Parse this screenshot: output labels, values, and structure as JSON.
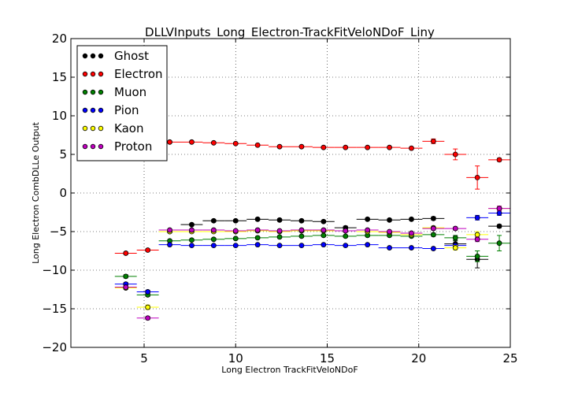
{
  "chart_data": {
    "type": "scatter",
    "title": "DLLVInputs_Long_Electron-TrackFitVeloNDoF_Liny",
    "xlabel": "Long Electron TrackFitVeloNDoF",
    "ylabel": "Long Electron CombDLLe Output",
    "xlim": [
      1,
      25
    ],
    "ylim": [
      -20,
      20
    ],
    "xticks": [
      5,
      10,
      15,
      20,
      25
    ],
    "yticks": [
      -20,
      -15,
      -10,
      -5,
      0,
      5,
      10,
      15,
      20
    ],
    "grid": true,
    "legend_position": "top-left",
    "x_error": 0.6,
    "series": [
      {
        "name": "Ghost",
        "color": "#000000",
        "points": [
          {
            "x": 6.4,
            "y": -5.0,
            "yerr": 0.15
          },
          {
            "x": 7.6,
            "y": -4.1,
            "yerr": 0.15
          },
          {
            "x": 8.8,
            "y": -3.6,
            "yerr": 0.15
          },
          {
            "x": 10.0,
            "y": -3.6,
            "yerr": 0.15
          },
          {
            "x": 11.2,
            "y": -3.4,
            "yerr": 0.15
          },
          {
            "x": 12.4,
            "y": -3.5,
            "yerr": 0.15
          },
          {
            "x": 13.6,
            "y": -3.6,
            "yerr": 0.15
          },
          {
            "x": 14.8,
            "y": -3.7,
            "yerr": 0.15
          },
          {
            "x": 16.0,
            "y": -4.5,
            "yerr": 0.2
          },
          {
            "x": 17.2,
            "y": -3.4,
            "yerr": 0.15
          },
          {
            "x": 18.4,
            "y": -3.5,
            "yerr": 0.15
          },
          {
            "x": 19.6,
            "y": -3.4,
            "yerr": 0.15
          },
          {
            "x": 20.8,
            "y": -3.3,
            "yerr": 0.2
          },
          {
            "x": 22.0,
            "y": -6.6,
            "yerr": 0.4
          },
          {
            "x": 23.2,
            "y": -8.6,
            "yerr": 1.1
          },
          {
            "x": 24.4,
            "y": -4.3,
            "yerr": 0.2
          }
        ]
      },
      {
        "name": "Electron",
        "color": "#ff0000",
        "points": [
          {
            "x": 4.0,
            "y": -7.8,
            "yerr": 0.15
          },
          {
            "x": 5.2,
            "y": -7.4,
            "yerr": 0.15
          },
          {
            "x": 6.4,
            "y": 6.6,
            "yerr": 0.1
          },
          {
            "x": 7.6,
            "y": 6.6,
            "yerr": 0.1
          },
          {
            "x": 8.8,
            "y": 6.5,
            "yerr": 0.1
          },
          {
            "x": 10.0,
            "y": 6.4,
            "yerr": 0.1
          },
          {
            "x": 11.2,
            "y": 6.2,
            "yerr": 0.1
          },
          {
            "x": 12.4,
            "y": 6.0,
            "yerr": 0.1
          },
          {
            "x": 13.6,
            "y": 6.0,
            "yerr": 0.1
          },
          {
            "x": 14.8,
            "y": 5.9,
            "yerr": 0.1
          },
          {
            "x": 16.0,
            "y": 5.9,
            "yerr": 0.1
          },
          {
            "x": 17.2,
            "y": 5.9,
            "yerr": 0.1
          },
          {
            "x": 18.4,
            "y": 5.9,
            "yerr": 0.1
          },
          {
            "x": 19.6,
            "y": 5.8,
            "yerr": 0.15
          },
          {
            "x": 20.8,
            "y": 6.7,
            "yerr": 0.3
          },
          {
            "x": 22.0,
            "y": 5.0,
            "yerr": 0.7
          },
          {
            "x": 23.2,
            "y": 2.0,
            "yerr": 1.5
          },
          {
            "x": 24.4,
            "y": 4.3,
            "yerr": 0.2
          }
        ]
      },
      {
        "name": "Muon",
        "color": "#008000",
        "points": [
          {
            "x": 4.0,
            "y": -10.8,
            "yerr": 0.2
          },
          {
            "x": 5.2,
            "y": -13.2,
            "yerr": 0.2
          },
          {
            "x": 6.4,
            "y": -6.2,
            "yerr": 0.15
          },
          {
            "x": 7.6,
            "y": -6.1,
            "yerr": 0.15
          },
          {
            "x": 8.8,
            "y": -6.0,
            "yerr": 0.15
          },
          {
            "x": 10.0,
            "y": -5.9,
            "yerr": 0.15
          },
          {
            "x": 11.2,
            "y": -5.8,
            "yerr": 0.15
          },
          {
            "x": 12.4,
            "y": -5.7,
            "yerr": 0.15
          },
          {
            "x": 13.6,
            "y": -5.6,
            "yerr": 0.15
          },
          {
            "x": 14.8,
            "y": -5.5,
            "yerr": 0.15
          },
          {
            "x": 16.0,
            "y": -5.6,
            "yerr": 0.15
          },
          {
            "x": 17.2,
            "y": -5.5,
            "yerr": 0.15
          },
          {
            "x": 18.4,
            "y": -5.5,
            "yerr": 0.15
          },
          {
            "x": 19.6,
            "y": -5.6,
            "yerr": 0.15
          },
          {
            "x": 20.8,
            "y": -5.4,
            "yerr": 0.2
          },
          {
            "x": 22.0,
            "y": -5.8,
            "yerr": 0.3
          },
          {
            "x": 23.2,
            "y": -8.2,
            "yerr": 0.7
          },
          {
            "x": 24.4,
            "y": -6.5,
            "yerr": 1.0
          }
        ]
      },
      {
        "name": "Pion",
        "color": "#0000ff",
        "points": [
          {
            "x": 4.0,
            "y": -11.8,
            "yerr": 0.2
          },
          {
            "x": 5.2,
            "y": -12.8,
            "yerr": 0.2
          },
          {
            "x": 6.4,
            "y": -6.7,
            "yerr": 0.1
          },
          {
            "x": 7.6,
            "y": -6.8,
            "yerr": 0.1
          },
          {
            "x": 8.8,
            "y": -6.8,
            "yerr": 0.1
          },
          {
            "x": 10.0,
            "y": -6.8,
            "yerr": 0.1
          },
          {
            "x": 11.2,
            "y": -6.7,
            "yerr": 0.1
          },
          {
            "x": 12.4,
            "y": -6.8,
            "yerr": 0.1
          },
          {
            "x": 13.6,
            "y": -6.8,
            "yerr": 0.1
          },
          {
            "x": 14.8,
            "y": -6.7,
            "yerr": 0.1
          },
          {
            "x": 16.0,
            "y": -6.8,
            "yerr": 0.1
          },
          {
            "x": 17.2,
            "y": -6.7,
            "yerr": 0.1
          },
          {
            "x": 18.4,
            "y": -7.1,
            "yerr": 0.1
          },
          {
            "x": 19.6,
            "y": -7.1,
            "yerr": 0.1
          },
          {
            "x": 20.8,
            "y": -7.2,
            "yerr": 0.15
          },
          {
            "x": 22.0,
            "y": -6.8,
            "yerr": 0.2
          },
          {
            "x": 23.2,
            "y": -3.2,
            "yerr": 0.3
          },
          {
            "x": 24.4,
            "y": -2.6,
            "yerr": 0.3
          }
        ]
      },
      {
        "name": "Kaon",
        "color": "#ffff00",
        "points": [
          {
            "x": 4.0,
            "y": -12.3,
            "yerr": 0.2
          },
          {
            "x": 5.2,
            "y": -14.8,
            "yerr": 0.3
          },
          {
            "x": 6.4,
            "y": -5.0,
            "yerr": 0.15
          },
          {
            "x": 7.6,
            "y": -5.0,
            "yerr": 0.15
          },
          {
            "x": 8.8,
            "y": -5.0,
            "yerr": 0.15
          },
          {
            "x": 10.0,
            "y": -5.0,
            "yerr": 0.15
          },
          {
            "x": 11.2,
            "y": -4.9,
            "yerr": 0.15
          },
          {
            "x": 12.4,
            "y": -5.0,
            "yerr": 0.15
          },
          {
            "x": 13.6,
            "y": -4.9,
            "yerr": 0.15
          },
          {
            "x": 14.8,
            "y": -4.9,
            "yerr": 0.15
          },
          {
            "x": 16.0,
            "y": -4.9,
            "yerr": 0.15
          },
          {
            "x": 17.2,
            "y": -5.0,
            "yerr": 0.15
          },
          {
            "x": 18.4,
            "y": -5.1,
            "yerr": 0.15
          },
          {
            "x": 19.6,
            "y": -5.4,
            "yerr": 0.15
          },
          {
            "x": 20.8,
            "y": -4.5,
            "yerr": 0.2
          },
          {
            "x": 22.0,
            "y": -7.1,
            "yerr": 0.3
          },
          {
            "x": 23.2,
            "y": -5.4,
            "yerr": 0.4
          },
          {
            "x": 24.4,
            "y": -2.0,
            "yerr": 0.3
          }
        ]
      },
      {
        "name": "Proton",
        "color": "#bf00bf",
        "points": [
          {
            "x": 4.0,
            "y": -12.2,
            "yerr": 0.2
          },
          {
            "x": 5.2,
            "y": -16.2,
            "yerr": 0.2
          },
          {
            "x": 6.4,
            "y": -4.8,
            "yerr": 0.15
          },
          {
            "x": 7.6,
            "y": -4.8,
            "yerr": 0.15
          },
          {
            "x": 8.8,
            "y": -4.8,
            "yerr": 0.15
          },
          {
            "x": 10.0,
            "y": -4.9,
            "yerr": 0.15
          },
          {
            "x": 11.2,
            "y": -4.8,
            "yerr": 0.15
          },
          {
            "x": 12.4,
            "y": -4.9,
            "yerr": 0.15
          },
          {
            "x": 13.6,
            "y": -4.8,
            "yerr": 0.15
          },
          {
            "x": 14.8,
            "y": -4.8,
            "yerr": 0.15
          },
          {
            "x": 16.0,
            "y": -4.9,
            "yerr": 0.15
          },
          {
            "x": 17.2,
            "y": -4.8,
            "yerr": 0.15
          },
          {
            "x": 18.4,
            "y": -5.0,
            "yerr": 0.15
          },
          {
            "x": 19.6,
            "y": -5.2,
            "yerr": 0.15
          },
          {
            "x": 20.8,
            "y": -4.6,
            "yerr": 0.2
          },
          {
            "x": 22.0,
            "y": -4.6,
            "yerr": 0.2
          },
          {
            "x": 23.2,
            "y": -6.0,
            "yerr": 0.3
          },
          {
            "x": 24.4,
            "y": -2.0,
            "yerr": 0.3
          }
        ]
      }
    ]
  }
}
